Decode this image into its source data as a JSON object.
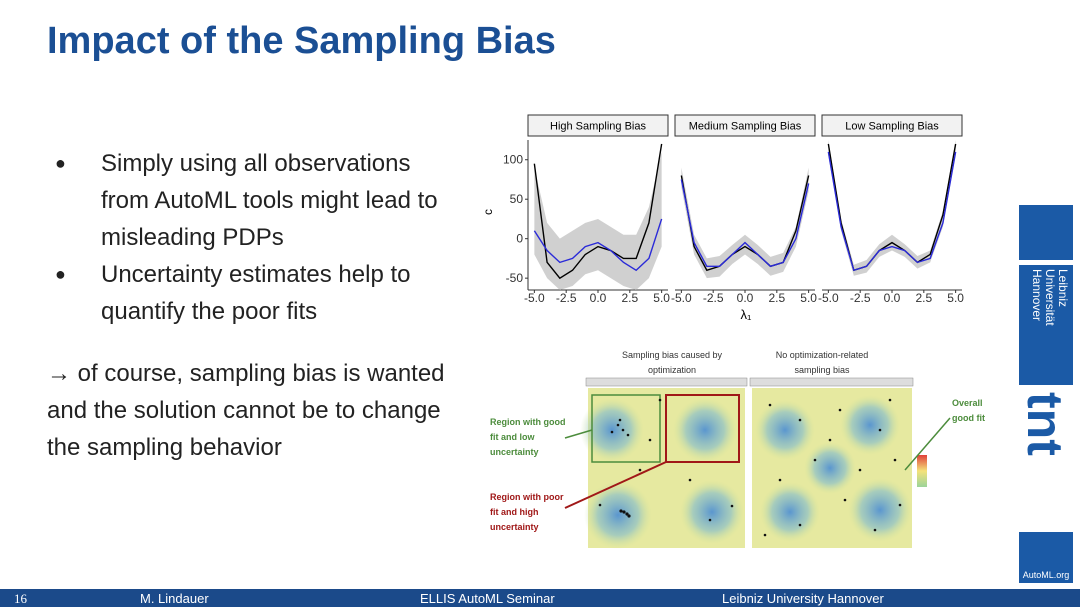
{
  "header": {
    "title": "Impact of the Sampling Bias"
  },
  "bullets": [
    "Simply using all observations from AutoML tools might lead to misleading PDPs",
    "Uncertainty estimates help to quantify the poor fits"
  ],
  "note": "→ of course, sampling bias is wanted and the solution cannot be to change the sampling behavior",
  "chart_data": {
    "type": "line",
    "y_label": "c",
    "x_label": "λ₁",
    "x": [
      -5,
      -4,
      -3,
      -2,
      -1,
      0,
      1,
      2,
      3,
      4,
      5
    ],
    "xlim": [
      -5.5,
      5.5
    ],
    "xticks": [
      {
        "value": -5,
        "label": "-5.0"
      },
      {
        "value": -2.5,
        "label": "-2.5"
      },
      {
        "value": 0,
        "label": "0.0"
      },
      {
        "value": 2.5,
        "label": "2.5"
      },
      {
        "value": 5,
        "label": "5.0"
      }
    ],
    "ylim": [
      -65,
      125
    ],
    "yticks": [
      100,
      50,
      0,
      -50
    ],
    "panels": [
      {
        "title": "High Sampling Bias",
        "band": {
          "color": "#c8c8c8",
          "lower": [
            -20,
            -50,
            -65,
            -60,
            -45,
            -40,
            -50,
            -60,
            -65,
            -50,
            -10
          ],
          "upper": [
            90,
            20,
            0,
            10,
            20,
            25,
            15,
            5,
            5,
            40,
            110
          ]
        },
        "series": [
          {
            "color": "#000000",
            "values": [
              95,
              -30,
              -50,
              -40,
              -20,
              -10,
              -15,
              -25,
              -25,
              20,
              120
            ]
          },
          {
            "color": "#2a2ad8",
            "values": [
              10,
              -15,
              -30,
              -25,
              -10,
              -5,
              -15,
              -30,
              -40,
              -25,
              25
            ]
          }
        ]
      },
      {
        "title": "Medium Sampling Bias",
        "band": {
          "color": "#c8c8c8",
          "lower": [
            65,
            -20,
            -50,
            -48,
            -32,
            -20,
            -32,
            -47,
            -42,
            -10,
            60
          ],
          "upper": [
            90,
            5,
            -25,
            -22,
            -8,
            5,
            -8,
            -23,
            -18,
            15,
            90
          ]
        },
        "series": [
          {
            "color": "#000000",
            "values": [
              80,
              -10,
              -40,
              -35,
              -20,
              -10,
              -20,
              -35,
              -30,
              10,
              80
            ]
          },
          {
            "color": "#2a2ad8",
            "values": [
              75,
              -5,
              -35,
              -35,
              -20,
              -5,
              -20,
              -35,
              -30,
              0,
              70
            ]
          }
        ]
      },
      {
        "title": "Low Sampling Bias",
        "band": {
          "color": "#c8c8c8",
          "lower": [
            105,
            10,
            -47,
            -43,
            -23,
            -15,
            -23,
            -38,
            -30,
            15,
            105
          ],
          "upper": [
            125,
            25,
            -33,
            -27,
            -7,
            5,
            -7,
            -22,
            -15,
            35,
            125
          ]
        },
        "series": [
          {
            "color": "#000000",
            "values": [
              120,
              20,
              -40,
              -35,
              -15,
              -5,
              -15,
              -30,
              -20,
              30,
              120
            ]
          },
          {
            "color": "#2a2ad8",
            "values": [
              110,
              15,
              -40,
              -35,
              -15,
              -10,
              -15,
              -30,
              -25,
              20,
              110
            ]
          }
        ]
      }
    ]
  },
  "heatmap_figure": {
    "panel_titles": [
      "Sampling bias caused by optimization",
      "No optimization-related sampling bias"
    ],
    "annotations": {
      "good": "Region with good fit and low uncertainty",
      "poor": "Region with poor fit and high uncertainty",
      "overall": "Overall good fit"
    }
  },
  "sidebar": {
    "logo_text": [
      "Leibniz",
      "Universität",
      "Hannover"
    ],
    "brand": "tnt",
    "site": "AutoML.org"
  },
  "footer": {
    "page": 16,
    "author": "M. Lindauer",
    "event": "ELLIS AutoML Seminar",
    "institution": "Leibniz University Hannover"
  }
}
